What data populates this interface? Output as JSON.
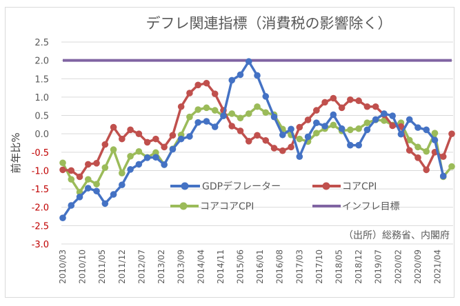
{
  "chart_data": {
    "type": "line",
    "title": "デフレ関連指標（消費税の影響除く）",
    "ylabel": "前年比%",
    "xlabel": "",
    "ylim": [
      -3.0,
      2.5
    ],
    "ytick_labels": [
      "2.5",
      "2.0",
      "1.5",
      "1.0",
      "0.5",
      "0.0",
      "-0.5",
      "-1.0",
      "-1.5",
      "-2.0",
      "-2.5",
      "-3.0"
    ],
    "negative_tick_color": "#c00000",
    "grid": true,
    "x": [
      "2010/03",
      "2010/06",
      "2010/09",
      "2010/12",
      "2011/03",
      "2011/06",
      "2011/09",
      "2011/12",
      "2012/03",
      "2012/06",
      "2012/09",
      "2012/12",
      "2013/03",
      "2013/06",
      "2013/09",
      "2013/12",
      "2014/03",
      "2014/06",
      "2014/09",
      "2014/12",
      "2015/03",
      "2015/06",
      "2015/09",
      "2015/12",
      "2016/03",
      "2016/06",
      "2016/09",
      "2016/12",
      "2017/03",
      "2017/06",
      "2017/09",
      "2017/12",
      "2018/03",
      "2018/06",
      "2018/09",
      "2018/12",
      "2019/03",
      "2019/06",
      "2019/09",
      "2019/12",
      "2020/03",
      "2020/06",
      "2020/09",
      "2020/12",
      "2021/03",
      "2021/06",
      "2021/09"
    ],
    "xtick_labels": [
      "2010/03",
      "2010/10",
      "2011/05",
      "2011/12",
      "2012/07",
      "2013/02",
      "2013/09",
      "2014/04",
      "2014/11",
      "2015/06",
      "2016/01",
      "2016/08",
      "2017/03",
      "2017/10",
      "2018/05",
      "2018/12",
      "2019/07",
      "2020/02",
      "2020/09",
      "2021/04"
    ],
    "series": [
      {
        "name": "GDPデフレーター",
        "color": "#4472c4",
        "values": [
          -2.29,
          -1.95,
          -1.72,
          -1.48,
          -1.56,
          -1.9,
          -1.65,
          -1.39,
          -0.97,
          -0.83,
          -0.65,
          -0.64,
          -0.84,
          -0.42,
          -0.14,
          -0.07,
          0.31,
          0.34,
          0.19,
          0.49,
          1.46,
          1.61,
          1.97,
          1.59,
          1.02,
          0.46,
          -0.03,
          0.13,
          -0.62,
          -0.08,
          0.3,
          0.21,
          0.52,
          0.14,
          -0.31,
          -0.31,
          0.11,
          0.39,
          0.55,
          0.49,
          -0.01,
          0.39,
          0.17,
          0.11,
          -0.17,
          -1.15,
          null
        ]
      },
      {
        "name": "コアCPI",
        "color": "#c0504d",
        "values": [
          -0.98,
          -1.0,
          -1.17,
          -0.83,
          -0.8,
          -0.29,
          0.18,
          -0.14,
          0.11,
          0.0,
          -0.23,
          -0.14,
          -0.36,
          -0.04,
          0.74,
          1.11,
          1.33,
          1.38,
          1.09,
          0.64,
          0.21,
          0.08,
          -0.2,
          -0.04,
          -0.18,
          -0.39,
          -0.46,
          -0.36,
          0.18,
          0.38,
          0.64,
          0.86,
          0.97,
          0.71,
          0.93,
          0.9,
          0.74,
          0.74,
          0.52,
          0.22,
          0.2,
          -0.45,
          -0.65,
          -0.98,
          -0.5,
          -0.62,
          0.0
        ]
      },
      {
        "name": "コアコアCPI",
        "color": "#9bbb59",
        "values": [
          -0.79,
          -1.24,
          -1.59,
          -1.24,
          -1.37,
          -0.92,
          -0.43,
          -1.07,
          -0.61,
          -0.48,
          -0.64,
          -0.51,
          -0.84,
          -0.41,
          -0.03,
          0.46,
          0.66,
          0.71,
          0.64,
          0.49,
          0.55,
          0.43,
          0.55,
          0.74,
          0.58,
          0.52,
          0.13,
          -0.03,
          -0.14,
          -0.21,
          0.02,
          0.14,
          0.24,
          0.08,
          0.11,
          0.14,
          0.3,
          0.38,
          0.36,
          0.24,
          0.3,
          -0.17,
          -0.36,
          -0.48,
          0.02,
          -1.17,
          -0.89
        ]
      },
      {
        "name": "インフレ目標",
        "color": "#8064a2",
        "constant": 2.0
      }
    ],
    "legend_position": "inside-bottom",
    "source": "（出所）総務省、内閣府"
  }
}
